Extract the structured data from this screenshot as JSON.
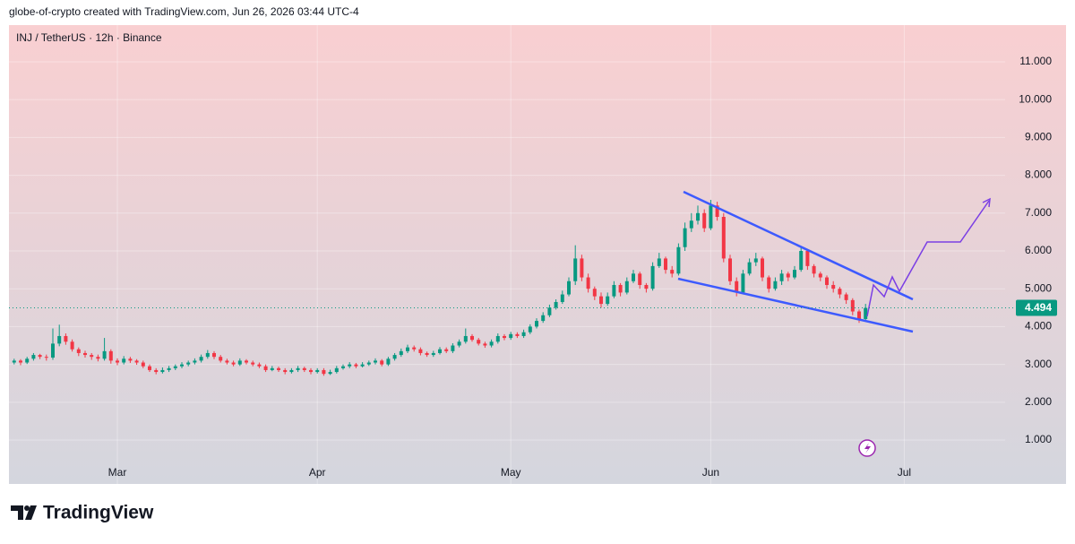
{
  "header": "globe-of-crypto created with TradingView.com, Jun 26, 2026 03:44 UTC-4",
  "footer_logo": "TradingView",
  "chart_data": {
    "type": "candlestick",
    "title": "INJ / TetherUS · 12h · Binance",
    "up_color": "#089981",
    "down_color": "#f23645",
    "ylim": [
      -0.16,
      11.97
    ],
    "yticks": [
      {
        "value": 1,
        "label": "1.000"
      },
      {
        "value": 2,
        "label": "2.000"
      },
      {
        "value": 3,
        "label": "3.000"
      },
      {
        "value": 4,
        "label": "4.000"
      },
      {
        "value": 5,
        "label": "5.000"
      },
      {
        "value": 6,
        "label": "6.000"
      },
      {
        "value": 7,
        "label": "7.000"
      },
      {
        "value": 8,
        "label": "8.000"
      },
      {
        "value": 9,
        "label": "9.000"
      },
      {
        "value": 10,
        "label": "10.000"
      },
      {
        "value": 11,
        "label": "11.000"
      }
    ],
    "xticks": [
      {
        "value": 16,
        "label": "Mar"
      },
      {
        "value": 47,
        "label": "Apr"
      },
      {
        "value": 77,
        "label": "May"
      },
      {
        "value": 108,
        "label": "Jun"
      },
      {
        "value": 138,
        "label": "Jul"
      }
    ],
    "last_price": {
      "value": 4.494,
      "label": "4.494"
    },
    "grid": true,
    "candles": [
      [
        3.05,
        3.15,
        3.0,
        3.1
      ],
      [
        3.1,
        3.14,
        2.98,
        3.05
      ],
      [
        3.05,
        3.2,
        3.01,
        3.15
      ],
      [
        3.15,
        3.3,
        3.1,
        3.25
      ],
      [
        3.25,
        3.28,
        3.14,
        3.2
      ],
      [
        3.2,
        3.26,
        3.1,
        3.18
      ],
      [
        3.18,
        3.95,
        3.12,
        3.55
      ],
      [
        3.55,
        4.05,
        3.48,
        3.75
      ],
      [
        3.75,
        3.82,
        3.52,
        3.6
      ],
      [
        3.6,
        3.66,
        3.34,
        3.4
      ],
      [
        3.4,
        3.45,
        3.22,
        3.3
      ],
      [
        3.3,
        3.36,
        3.18,
        3.25
      ],
      [
        3.25,
        3.3,
        3.12,
        3.2
      ],
      [
        3.2,
        3.26,
        3.08,
        3.15
      ],
      [
        3.15,
        3.7,
        3.1,
        3.35
      ],
      [
        3.35,
        3.4,
        3.02,
        3.1
      ],
      [
        3.1,
        3.16,
        2.98,
        3.05
      ],
      [
        3.05,
        3.22,
        3.0,
        3.15
      ],
      [
        3.15,
        3.2,
        3.04,
        3.1
      ],
      [
        3.1,
        3.14,
        2.99,
        3.05
      ],
      [
        3.05,
        3.1,
        2.9,
        2.95
      ],
      [
        2.95,
        3.0,
        2.8,
        2.85
      ],
      [
        2.85,
        2.9,
        2.74,
        2.8
      ],
      [
        2.8,
        2.92,
        2.76,
        2.85
      ],
      [
        2.85,
        2.96,
        2.8,
        2.9
      ],
      [
        2.9,
        3.0,
        2.85,
        2.95
      ],
      [
        2.95,
        3.06,
        2.9,
        3.0
      ],
      [
        3.0,
        3.1,
        2.95,
        3.05
      ],
      [
        3.05,
        3.16,
        3.0,
        3.1
      ],
      [
        3.1,
        3.26,
        3.05,
        3.2
      ],
      [
        3.2,
        3.38,
        3.15,
        3.3
      ],
      [
        3.3,
        3.35,
        3.14,
        3.2
      ],
      [
        3.2,
        3.25,
        3.05,
        3.1
      ],
      [
        3.1,
        3.15,
        3.0,
        3.05
      ],
      [
        3.05,
        3.1,
        2.95,
        3.0
      ],
      [
        3.0,
        3.16,
        2.96,
        3.1
      ],
      [
        3.1,
        3.14,
        3.0,
        3.05
      ],
      [
        3.05,
        3.1,
        2.95,
        3.0
      ],
      [
        3.0,
        3.05,
        2.9,
        2.95
      ],
      [
        2.95,
        3.0,
        2.8,
        2.85
      ],
      [
        2.85,
        2.96,
        2.82,
        2.9
      ],
      [
        2.9,
        2.94,
        2.8,
        2.85
      ],
      [
        2.85,
        2.9,
        2.74,
        2.8
      ],
      [
        2.8,
        2.9,
        2.76,
        2.85
      ],
      [
        2.85,
        2.96,
        2.8,
        2.9
      ],
      [
        2.9,
        2.94,
        2.8,
        2.85
      ],
      [
        2.85,
        2.9,
        2.74,
        2.8
      ],
      [
        2.8,
        2.9,
        2.76,
        2.85
      ],
      [
        2.85,
        2.9,
        2.7,
        2.75
      ],
      [
        2.75,
        2.86,
        2.72,
        2.8
      ],
      [
        2.8,
        2.96,
        2.76,
        2.9
      ],
      [
        2.9,
        3.0,
        2.86,
        2.95
      ],
      [
        2.95,
        3.06,
        2.9,
        3.0
      ],
      [
        3.0,
        3.04,
        2.9,
        2.95
      ],
      [
        2.95,
        3.06,
        2.92,
        3.0
      ],
      [
        3.0,
        3.1,
        2.96,
        3.05
      ],
      [
        3.05,
        3.16,
        3.0,
        3.1
      ],
      [
        3.1,
        3.14,
        2.95,
        3.0
      ],
      [
        3.0,
        3.2,
        2.96,
        3.15
      ],
      [
        3.15,
        3.3,
        3.1,
        3.25
      ],
      [
        3.25,
        3.42,
        3.2,
        3.35
      ],
      [
        3.35,
        3.52,
        3.3,
        3.45
      ],
      [
        3.45,
        3.5,
        3.34,
        3.4
      ],
      [
        3.4,
        3.45,
        3.24,
        3.3
      ],
      [
        3.3,
        3.34,
        3.2,
        3.25
      ],
      [
        3.25,
        3.36,
        3.2,
        3.3
      ],
      [
        3.3,
        3.46,
        3.26,
        3.4
      ],
      [
        3.4,
        3.45,
        3.3,
        3.35
      ],
      [
        3.35,
        3.56,
        3.3,
        3.5
      ],
      [
        3.5,
        3.66,
        3.45,
        3.6
      ],
      [
        3.6,
        3.95,
        3.55,
        3.75
      ],
      [
        3.75,
        3.8,
        3.6,
        3.65
      ],
      [
        3.65,
        3.7,
        3.5,
        3.55
      ],
      [
        3.55,
        3.6,
        3.44,
        3.5
      ],
      [
        3.5,
        3.66,
        3.45,
        3.6
      ],
      [
        3.6,
        3.82,
        3.55,
        3.75
      ],
      [
        3.75,
        3.8,
        3.64,
        3.7
      ],
      [
        3.7,
        3.86,
        3.65,
        3.8
      ],
      [
        3.8,
        3.85,
        3.7,
        3.75
      ],
      [
        3.75,
        3.92,
        3.7,
        3.85
      ],
      [
        3.85,
        4.06,
        3.8,
        4.0
      ],
      [
        4.0,
        4.22,
        3.95,
        4.15
      ],
      [
        4.15,
        4.38,
        4.1,
        4.3
      ],
      [
        4.3,
        4.58,
        4.25,
        4.5
      ],
      [
        4.5,
        4.72,
        4.45,
        4.65
      ],
      [
        4.65,
        4.95,
        4.6,
        4.85
      ],
      [
        4.85,
        5.3,
        4.8,
        5.2
      ],
      [
        5.2,
        6.15,
        5.1,
        5.8
      ],
      [
        5.8,
        5.9,
        5.2,
        5.3
      ],
      [
        5.3,
        5.4,
        4.9,
        5.0
      ],
      [
        5.0,
        5.06,
        4.7,
        4.8
      ],
      [
        4.8,
        4.9,
        4.5,
        4.6
      ],
      [
        4.6,
        4.9,
        4.55,
        4.8
      ],
      [
        4.8,
        5.2,
        4.75,
        5.1
      ],
      [
        5.1,
        5.15,
        4.8,
        4.9
      ],
      [
        4.9,
        5.3,
        4.85,
        5.2
      ],
      [
        5.2,
        5.5,
        5.15,
        5.4
      ],
      [
        5.4,
        5.45,
        5.0,
        5.1
      ],
      [
        5.1,
        5.15,
        4.9,
        5.0
      ],
      [
        5.0,
        5.7,
        4.95,
        5.6
      ],
      [
        5.6,
        5.95,
        5.55,
        5.8
      ],
      [
        5.8,
        5.85,
        5.4,
        5.5
      ],
      [
        5.5,
        5.6,
        5.3,
        5.4
      ],
      [
        5.4,
        6.2,
        5.35,
        6.1
      ],
      [
        6.1,
        6.75,
        6.0,
        6.6
      ],
      [
        6.6,
        7.0,
        6.5,
        6.8
      ],
      [
        6.8,
        7.2,
        6.7,
        7.0
      ],
      [
        7.0,
        7.1,
        6.5,
        6.6
      ],
      [
        6.6,
        7.35,
        6.55,
        7.2
      ],
      [
        7.2,
        7.3,
        6.8,
        6.9
      ],
      [
        6.9,
        7.0,
        5.7,
        5.8
      ],
      [
        5.8,
        5.9,
        5.1,
        5.2
      ],
      [
        5.2,
        5.3,
        4.8,
        4.9
      ],
      [
        4.9,
        5.5,
        4.85,
        5.4
      ],
      [
        5.4,
        5.8,
        5.35,
        5.7
      ],
      [
        5.7,
        5.95,
        5.6,
        5.8
      ],
      [
        5.8,
        5.85,
        5.2,
        5.3
      ],
      [
        5.3,
        5.35,
        4.9,
        5.0
      ],
      [
        5.0,
        5.3,
        4.95,
        5.2
      ],
      [
        5.2,
        5.5,
        5.1,
        5.4
      ],
      [
        5.4,
        5.45,
        5.2,
        5.3
      ],
      [
        5.3,
        5.6,
        5.25,
        5.5
      ],
      [
        5.5,
        6.1,
        5.45,
        6.0
      ],
      [
        6.0,
        6.05,
        5.5,
        5.6
      ],
      [
        5.6,
        5.65,
        5.3,
        5.4
      ],
      [
        5.4,
        5.45,
        5.2,
        5.3
      ],
      [
        5.3,
        5.35,
        5.0,
        5.1
      ],
      [
        5.1,
        5.2,
        4.9,
        5.0
      ],
      [
        5.0,
        5.05,
        4.75,
        4.85
      ],
      [
        4.85,
        4.9,
        4.6,
        4.7
      ],
      [
        4.7,
        4.75,
        4.3,
        4.4
      ],
      [
        4.4,
        4.45,
        4.1,
        4.2
      ],
      [
        4.2,
        4.6,
        4.15,
        4.494
      ]
    ]
  }
}
